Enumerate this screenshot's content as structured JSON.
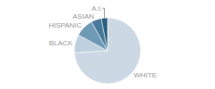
{
  "chart_data": {
    "type": "pie",
    "categories": [
      "WHITE",
      "BLACK",
      "HISPANIC",
      "ASIAN",
      "A.I."
    ],
    "values": [
      74,
      9,
      9,
      5,
      3
    ],
    "colors": [
      "#ccd8e3",
      "#bfd0de",
      "#6f9ab5",
      "#4a7a9b",
      "#2a6080"
    ]
  }
}
